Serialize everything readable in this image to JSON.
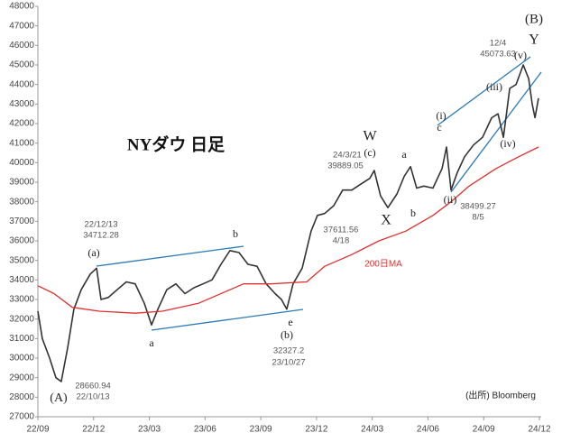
{
  "chart_data": {
    "type": "line",
    "title": "NYダウ 日足",
    "source": "(出所) Bloomberg",
    "xlim": [
      0,
      27
    ],
    "xticks": [
      {
        "value": 0,
        "label": "22/09"
      },
      {
        "value": 3,
        "label": "22/12"
      },
      {
        "value": 6,
        "label": "23/03"
      },
      {
        "value": 9,
        "label": "23/06"
      },
      {
        "value": 12,
        "label": "23/09"
      },
      {
        "value": 15,
        "label": "23/12"
      },
      {
        "value": 18,
        "label": "24/03"
      },
      {
        "value": 21,
        "label": "24/06"
      },
      {
        "value": 24,
        "label": "24/09"
      },
      {
        "value": 27,
        "label": "24/12"
      }
    ],
    "ylim": [
      27000,
      48000
    ],
    "yticks": [
      27000,
      28000,
      29000,
      30000,
      31000,
      32000,
      33000,
      34000,
      35000,
      36000,
      37000,
      38000,
      39000,
      40000,
      41000,
      42000,
      43000,
      44000,
      45000,
      46000,
      47000,
      48000
    ],
    "grid": false,
    "series": [
      {
        "color": "#333333",
        "x": [
          0,
          0.24,
          0.63,
          0.97,
          1.26,
          1.6,
          1.94,
          2.33,
          2.82,
          3.16,
          3.4,
          3.79,
          4.27,
          4.76,
          5.24,
          5.73,
          6.12,
          6.46,
          6.94,
          7.43,
          7.92,
          8.4,
          8.89,
          9.37,
          9.86,
          10.34,
          10.83,
          11.31,
          11.8,
          12.29,
          12.77,
          13.11,
          13.4,
          13.74,
          14.23,
          14.71,
          15.05,
          15.44,
          15.93,
          16.41,
          16.9,
          17.38,
          17.87,
          18.11,
          18.45,
          18.84,
          19.33,
          19.72,
          20.06,
          20.39,
          20.78,
          21.27,
          21.76,
          22.0,
          22.24,
          22.58,
          22.97,
          23.45,
          23.94,
          24.43,
          24.77,
          25.06,
          25.4,
          25.74,
          26.13,
          26.42,
          26.61,
          26.76,
          26.95
        ],
        "values": [
          32400,
          31000,
          30000,
          29000,
          28800,
          30500,
          32500,
          33500,
          34300,
          34600,
          33000,
          33100,
          33500,
          33900,
          33800,
          32800,
          31700,
          32500,
          33500,
          33800,
          33300,
          33600,
          33800,
          34000,
          34800,
          35500,
          35400,
          34800,
          34700,
          33800,
          33300,
          33000,
          32500,
          33800,
          34600,
          36500,
          37300,
          37400,
          37800,
          38600,
          38600,
          38900,
          39200,
          39600,
          38300,
          37700,
          38400,
          39300,
          39800,
          38700,
          38800,
          38700,
          39700,
          40800,
          38600,
          39500,
          40300,
          40900,
          41300,
          42300,
          42500,
          41300,
          43800,
          44000,
          45000,
          44300,
          43000,
          42300,
          43300
        ]
      },
      {
        "name": "200日MA",
        "color": "#e03030",
        "x": [
          0,
          0.87,
          1.85,
          3.3,
          5.24,
          6.7,
          8.64,
          10.1,
          11.07,
          12.53,
          14.47,
          15.44,
          16.9,
          18.36,
          19.81,
          21.27,
          22.24,
          23.21,
          24.67,
          25.88,
          26.95
        ],
        "values": [
          33700,
          33300,
          32600,
          32400,
          32300,
          32400,
          32800,
          33400,
          33800,
          33800,
          33900,
          34700,
          35300,
          36000,
          36500,
          37300,
          38000,
          38800,
          39700,
          40300,
          40800
        ]
      }
    ],
    "annotations": [
      "(B)",
      "Y",
      "12/4",
      "45073.63",
      "(v)",
      "(iii)",
      "(i)",
      "c",
      "(iv)",
      "W",
      "(c)",
      "24/3/21",
      "39889.05",
      "a",
      "b",
      "X",
      "(ii)",
      "38499.27",
      "8/5",
      "37611.56",
      "4/18",
      "22/12/13",
      "34712.28",
      "(a)",
      "b",
      "a",
      "e",
      "(b)",
      "32327.2",
      "23/10/27",
      "28660.94",
      "22/10/13",
      "(A)"
    ]
  }
}
